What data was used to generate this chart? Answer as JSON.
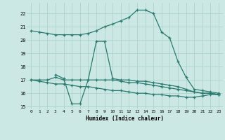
{
  "xlabel": "Humidex (Indice chaleur)",
  "bg_color": "#cce8e4",
  "line_color": "#2a7a70",
  "grid_color": "#aacfc8",
  "xlim": [
    -0.5,
    23.5
  ],
  "ylim": [
    14.8,
    22.8
  ],
  "xticks": [
    0,
    1,
    2,
    3,
    4,
    5,
    6,
    7,
    8,
    9,
    10,
    11,
    12,
    13,
    14,
    15,
    16,
    17,
    18,
    19,
    20,
    21,
    22,
    23
  ],
  "yticks": [
    15,
    16,
    17,
    18,
    19,
    20,
    21,
    22
  ],
  "line1_x": [
    0,
    1,
    2,
    3,
    4,
    5,
    6,
    7,
    8,
    9,
    10,
    11,
    12,
    13,
    14,
    15,
    16,
    17,
    18,
    19,
    20,
    21,
    22,
    23
  ],
  "line1_y": [
    20.7,
    20.6,
    20.5,
    20.4,
    20.4,
    20.4,
    20.4,
    20.5,
    20.7,
    21.0,
    21.2,
    21.45,
    21.7,
    22.25,
    22.25,
    22.0,
    20.6,
    20.15,
    18.4,
    17.2,
    16.3,
    16.2,
    16.1,
    16.0
  ],
  "line2_x": [
    3,
    4,
    5,
    6,
    7,
    8,
    9,
    10,
    11,
    12,
    13,
    14,
    15,
    16,
    17,
    18,
    19,
    20,
    21,
    22,
    23
  ],
  "line2_y": [
    17.4,
    17.1,
    15.2,
    15.2,
    17.0,
    19.9,
    19.9,
    17.1,
    17.0,
    17.0,
    16.9,
    16.9,
    16.8,
    16.7,
    16.6,
    16.5,
    16.3,
    16.1,
    16.0,
    16.0,
    15.9
  ],
  "line3_x": [
    0,
    1,
    2,
    3,
    4,
    5,
    6,
    7,
    8,
    9,
    10,
    11,
    12,
    13,
    14,
    15,
    16,
    17,
    18,
    19,
    20,
    21,
    22,
    23
  ],
  "line3_y": [
    17.0,
    17.0,
    17.0,
    17.2,
    17.0,
    17.0,
    17.0,
    17.0,
    17.0,
    17.0,
    17.0,
    16.9,
    16.8,
    16.8,
    16.7,
    16.6,
    16.5,
    16.4,
    16.3,
    16.2,
    16.1,
    16.0,
    16.0,
    15.9
  ],
  "line4_x": [
    0,
    1,
    2,
    3,
    4,
    5,
    6,
    7,
    8,
    9,
    10,
    11,
    12,
    13,
    14,
    15,
    16,
    17,
    18,
    19,
    20,
    21,
    22,
    23
  ],
  "line4_y": [
    17.0,
    16.9,
    16.8,
    16.7,
    16.7,
    16.6,
    16.5,
    16.5,
    16.4,
    16.3,
    16.2,
    16.2,
    16.1,
    16.0,
    16.0,
    15.9,
    15.9,
    15.8,
    15.8,
    15.7,
    15.7,
    15.8,
    15.9,
    15.9
  ]
}
